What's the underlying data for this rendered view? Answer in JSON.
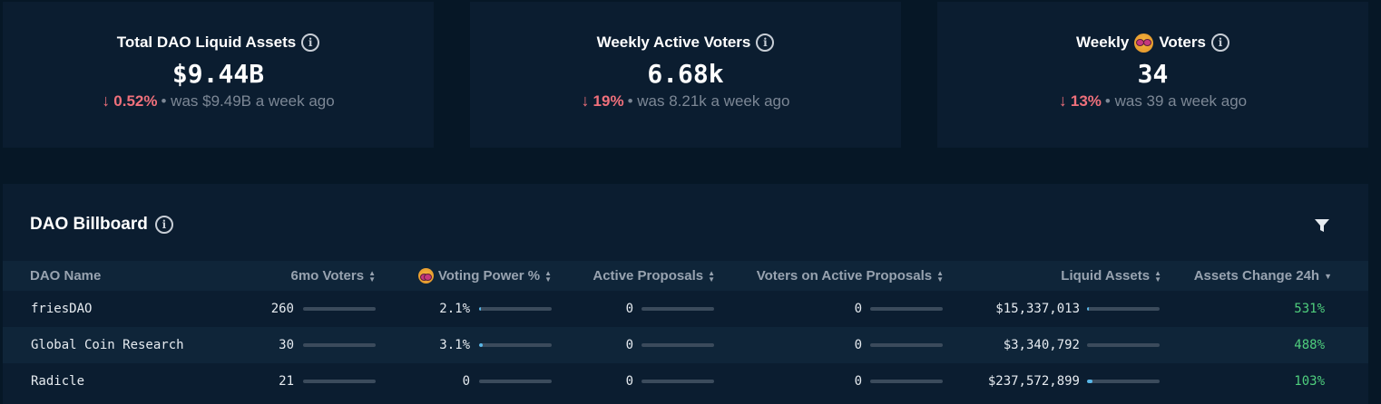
{
  "cards": [
    {
      "title": "Total DAO Liquid Assets",
      "value": "$9.44B",
      "change_pct": "0.52%",
      "change_text": "• was $9.49B a week ago"
    },
    {
      "title": "Weekly Active Voters",
      "value": "6.68k",
      "change_pct": "19%",
      "change_text": "• was 8.21k a week ago"
    },
    {
      "title_prefix": "Weekly",
      "title_suffix": "Voters",
      "value": "34",
      "change_pct": "13%",
      "change_text": "• was 39 a week ago"
    }
  ],
  "billboard": {
    "title": "DAO Billboard",
    "columns": {
      "name": "DAO Name",
      "voters": "6mo Voters",
      "voting_power": "Voting Power %",
      "active_proposals": "Active Proposals",
      "voters_active": "Voters on Active Proposals",
      "liquid_assets": "Liquid Assets",
      "assets_change": "Assets Change 24h"
    },
    "rows": [
      {
        "name": "friesDAO",
        "voters": "260",
        "voting_power": "2.1%",
        "active_proposals": "0",
        "voters_active": "0",
        "liquid_assets": "$15,337,013",
        "assets_change": "531%"
      },
      {
        "name": "Global Coin Research",
        "voters": "30",
        "voting_power": "3.1%",
        "active_proposals": "0",
        "voters_active": "0",
        "liquid_assets": "$3,340,792",
        "assets_change": "488%"
      },
      {
        "name": "Radicle",
        "voters": "21",
        "voting_power": "0",
        "active_proposals": "0",
        "voters_active": "0",
        "liquid_assets": "$237,572,899",
        "assets_change": "103%"
      }
    ]
  },
  "colors": {
    "background": "#061726",
    "card": "#0b1d30",
    "negative": "#f0707b",
    "positive": "#4fce7d",
    "bar_fill": "#58b7e8"
  },
  "icons": [
    "info-icon",
    "emoji-icon",
    "filter-icon",
    "sort-icon",
    "down-arrow-icon"
  ]
}
